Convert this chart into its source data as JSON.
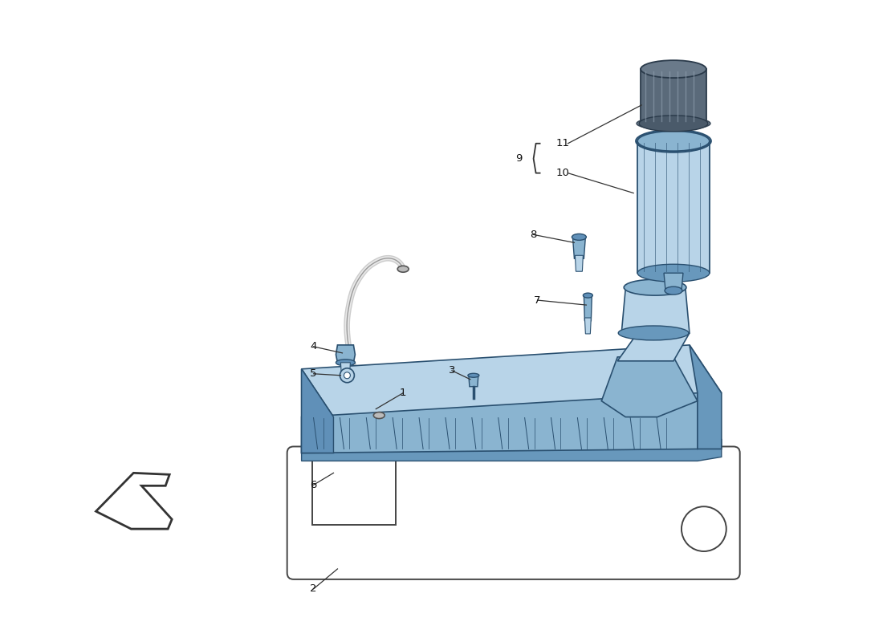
{
  "background_color": "#ffffff",
  "fig_width": 11.0,
  "fig_height": 8.0,
  "lc": "#b8d4e8",
  "mc": "#8ab4d0",
  "dc": "#6090b8",
  "oc": "#2a5070",
  "sc": "#6898bc",
  "label_fontsize": 9.5,
  "line_color": "#333333"
}
